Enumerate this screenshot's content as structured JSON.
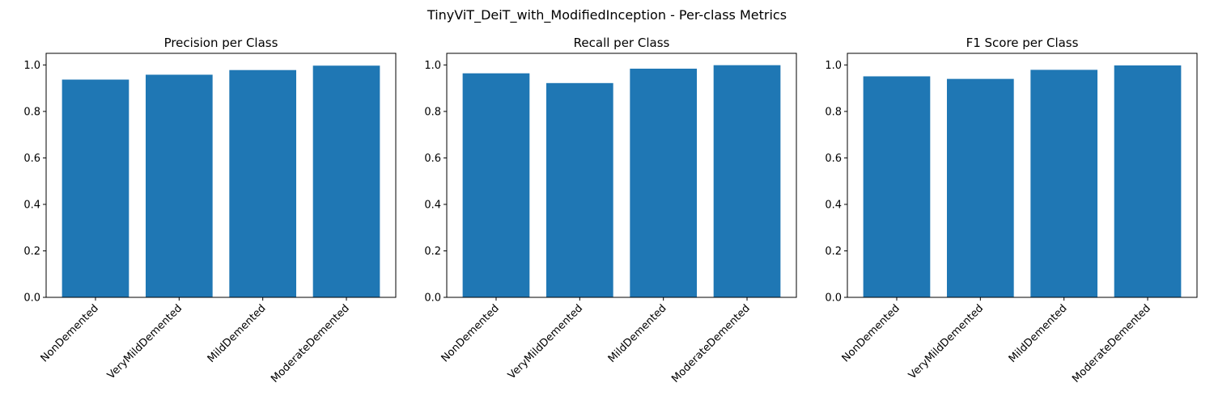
{
  "figure": {
    "suptitle": "TinyViT_DeiT_with_ModifiedInception - Per-class Metrics"
  },
  "colors": {
    "bar": "#1f77b4",
    "axis": "#000000",
    "background": "#ffffff"
  },
  "chart_data": [
    {
      "type": "bar",
      "title": "Precision per Class",
      "xlabel": "",
      "ylabel": "",
      "categories": [
        "NonDemented",
        "VeryMildDemented",
        "MildDemented",
        "ModerateDemented"
      ],
      "values": [
        0.937,
        0.958,
        0.978,
        0.997
      ],
      "ylim": [
        0,
        1.05
      ],
      "yticks": [
        "0.0",
        "0.2",
        "0.4",
        "0.6",
        "0.8",
        "1.0"
      ],
      "grid": false,
      "xtick_rotation": 45
    },
    {
      "type": "bar",
      "title": "Recall per Class",
      "xlabel": "",
      "ylabel": "",
      "categories": [
        "NonDemented",
        "VeryMildDemented",
        "MildDemented",
        "ModerateDemented"
      ],
      "values": [
        0.964,
        0.922,
        0.984,
        0.999
      ],
      "ylim": [
        0,
        1.05
      ],
      "yticks": [
        "0.0",
        "0.2",
        "0.4",
        "0.6",
        "0.8",
        "1.0"
      ],
      "grid": false,
      "xtick_rotation": 45
    },
    {
      "type": "bar",
      "title": "F1 Score per Class",
      "xlabel": "",
      "ylabel": "",
      "categories": [
        "NonDemented",
        "VeryMildDemented",
        "MildDemented",
        "ModerateDemented"
      ],
      "values": [
        0.951,
        0.94,
        0.979,
        0.998
      ],
      "ylim": [
        0,
        1.05
      ],
      "yticks": [
        "0.0",
        "0.2",
        "0.4",
        "0.6",
        "0.8",
        "1.0"
      ],
      "grid": false,
      "xtick_rotation": 45
    }
  ]
}
